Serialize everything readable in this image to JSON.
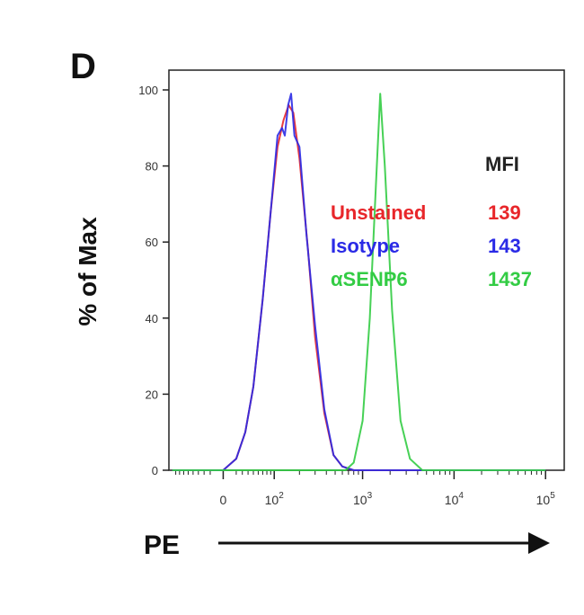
{
  "panel_label": "D",
  "chart_data": {
    "type": "line",
    "xlabel": "PE",
    "ylabel": "% of Max",
    "ylim": [
      0,
      100
    ],
    "yticks": [
      0,
      20,
      40,
      60,
      80,
      100
    ],
    "x_scale": "biexponential (linear near 0, log above)",
    "xticks": [
      {
        "value": 0,
        "label": "0",
        "mantissa": "0",
        "exp": ""
      },
      {
        "value": 100,
        "label": "10^2",
        "mantissa": "10",
        "exp": "2"
      },
      {
        "value": 1000,
        "label": "10^3",
        "mantissa": "10",
        "exp": "3"
      },
      {
        "value": 10000,
        "label": "10^4",
        "mantissa": "10",
        "exp": "4"
      },
      {
        "value": 100000,
        "label": "10^5",
        "mantissa": "10",
        "exp": "5"
      }
    ],
    "grid": false,
    "legend_title": "MFI",
    "legend_position": "right",
    "series": [
      {
        "name": "Unstained",
        "mfi": "139",
        "color": "#e8262a",
        "points": [
          [
            -100,
            0
          ],
          [
            0,
            0
          ],
          [
            20,
            3
          ],
          [
            35,
            10
          ],
          [
            50,
            22
          ],
          [
            70,
            45
          ],
          [
            90,
            68
          ],
          [
            110,
            85
          ],
          [
            130,
            92
          ],
          [
            150,
            96
          ],
          [
            170,
            94
          ],
          [
            200,
            82
          ],
          [
            250,
            58
          ],
          [
            300,
            35
          ],
          [
            380,
            15
          ],
          [
            480,
            4
          ],
          [
            600,
            1
          ],
          [
            800,
            0
          ],
          [
            100000,
            0
          ]
        ]
      },
      {
        "name": "Isotype",
        "mfi": "143",
        "color": "#2a2ae6",
        "points": [
          [
            -100,
            0
          ],
          [
            0,
            0
          ],
          [
            20,
            3
          ],
          [
            35,
            10
          ],
          [
            50,
            22
          ],
          [
            70,
            45
          ],
          [
            90,
            68
          ],
          [
            110,
            88
          ],
          [
            125,
            90
          ],
          [
            135,
            88
          ],
          [
            148,
            96
          ],
          [
            160,
            99
          ],
          [
            175,
            88
          ],
          [
            200,
            85
          ],
          [
            240,
            62
          ],
          [
            300,
            38
          ],
          [
            380,
            16
          ],
          [
            480,
            4
          ],
          [
            600,
            1
          ],
          [
            800,
            0
          ],
          [
            100000,
            0
          ]
        ]
      },
      {
        "name": "αSENP6",
        "mfi": "1437",
        "color": "#33cc44",
        "points": [
          [
            -100,
            0
          ],
          [
            650,
            0
          ],
          [
            800,
            2
          ],
          [
            1000,
            13
          ],
          [
            1200,
            40
          ],
          [
            1400,
            75
          ],
          [
            1560,
            99
          ],
          [
            1750,
            80
          ],
          [
            2100,
            42
          ],
          [
            2600,
            13
          ],
          [
            3300,
            3
          ],
          [
            4500,
            0
          ],
          [
            100000,
            0
          ]
        ]
      }
    ]
  }
}
